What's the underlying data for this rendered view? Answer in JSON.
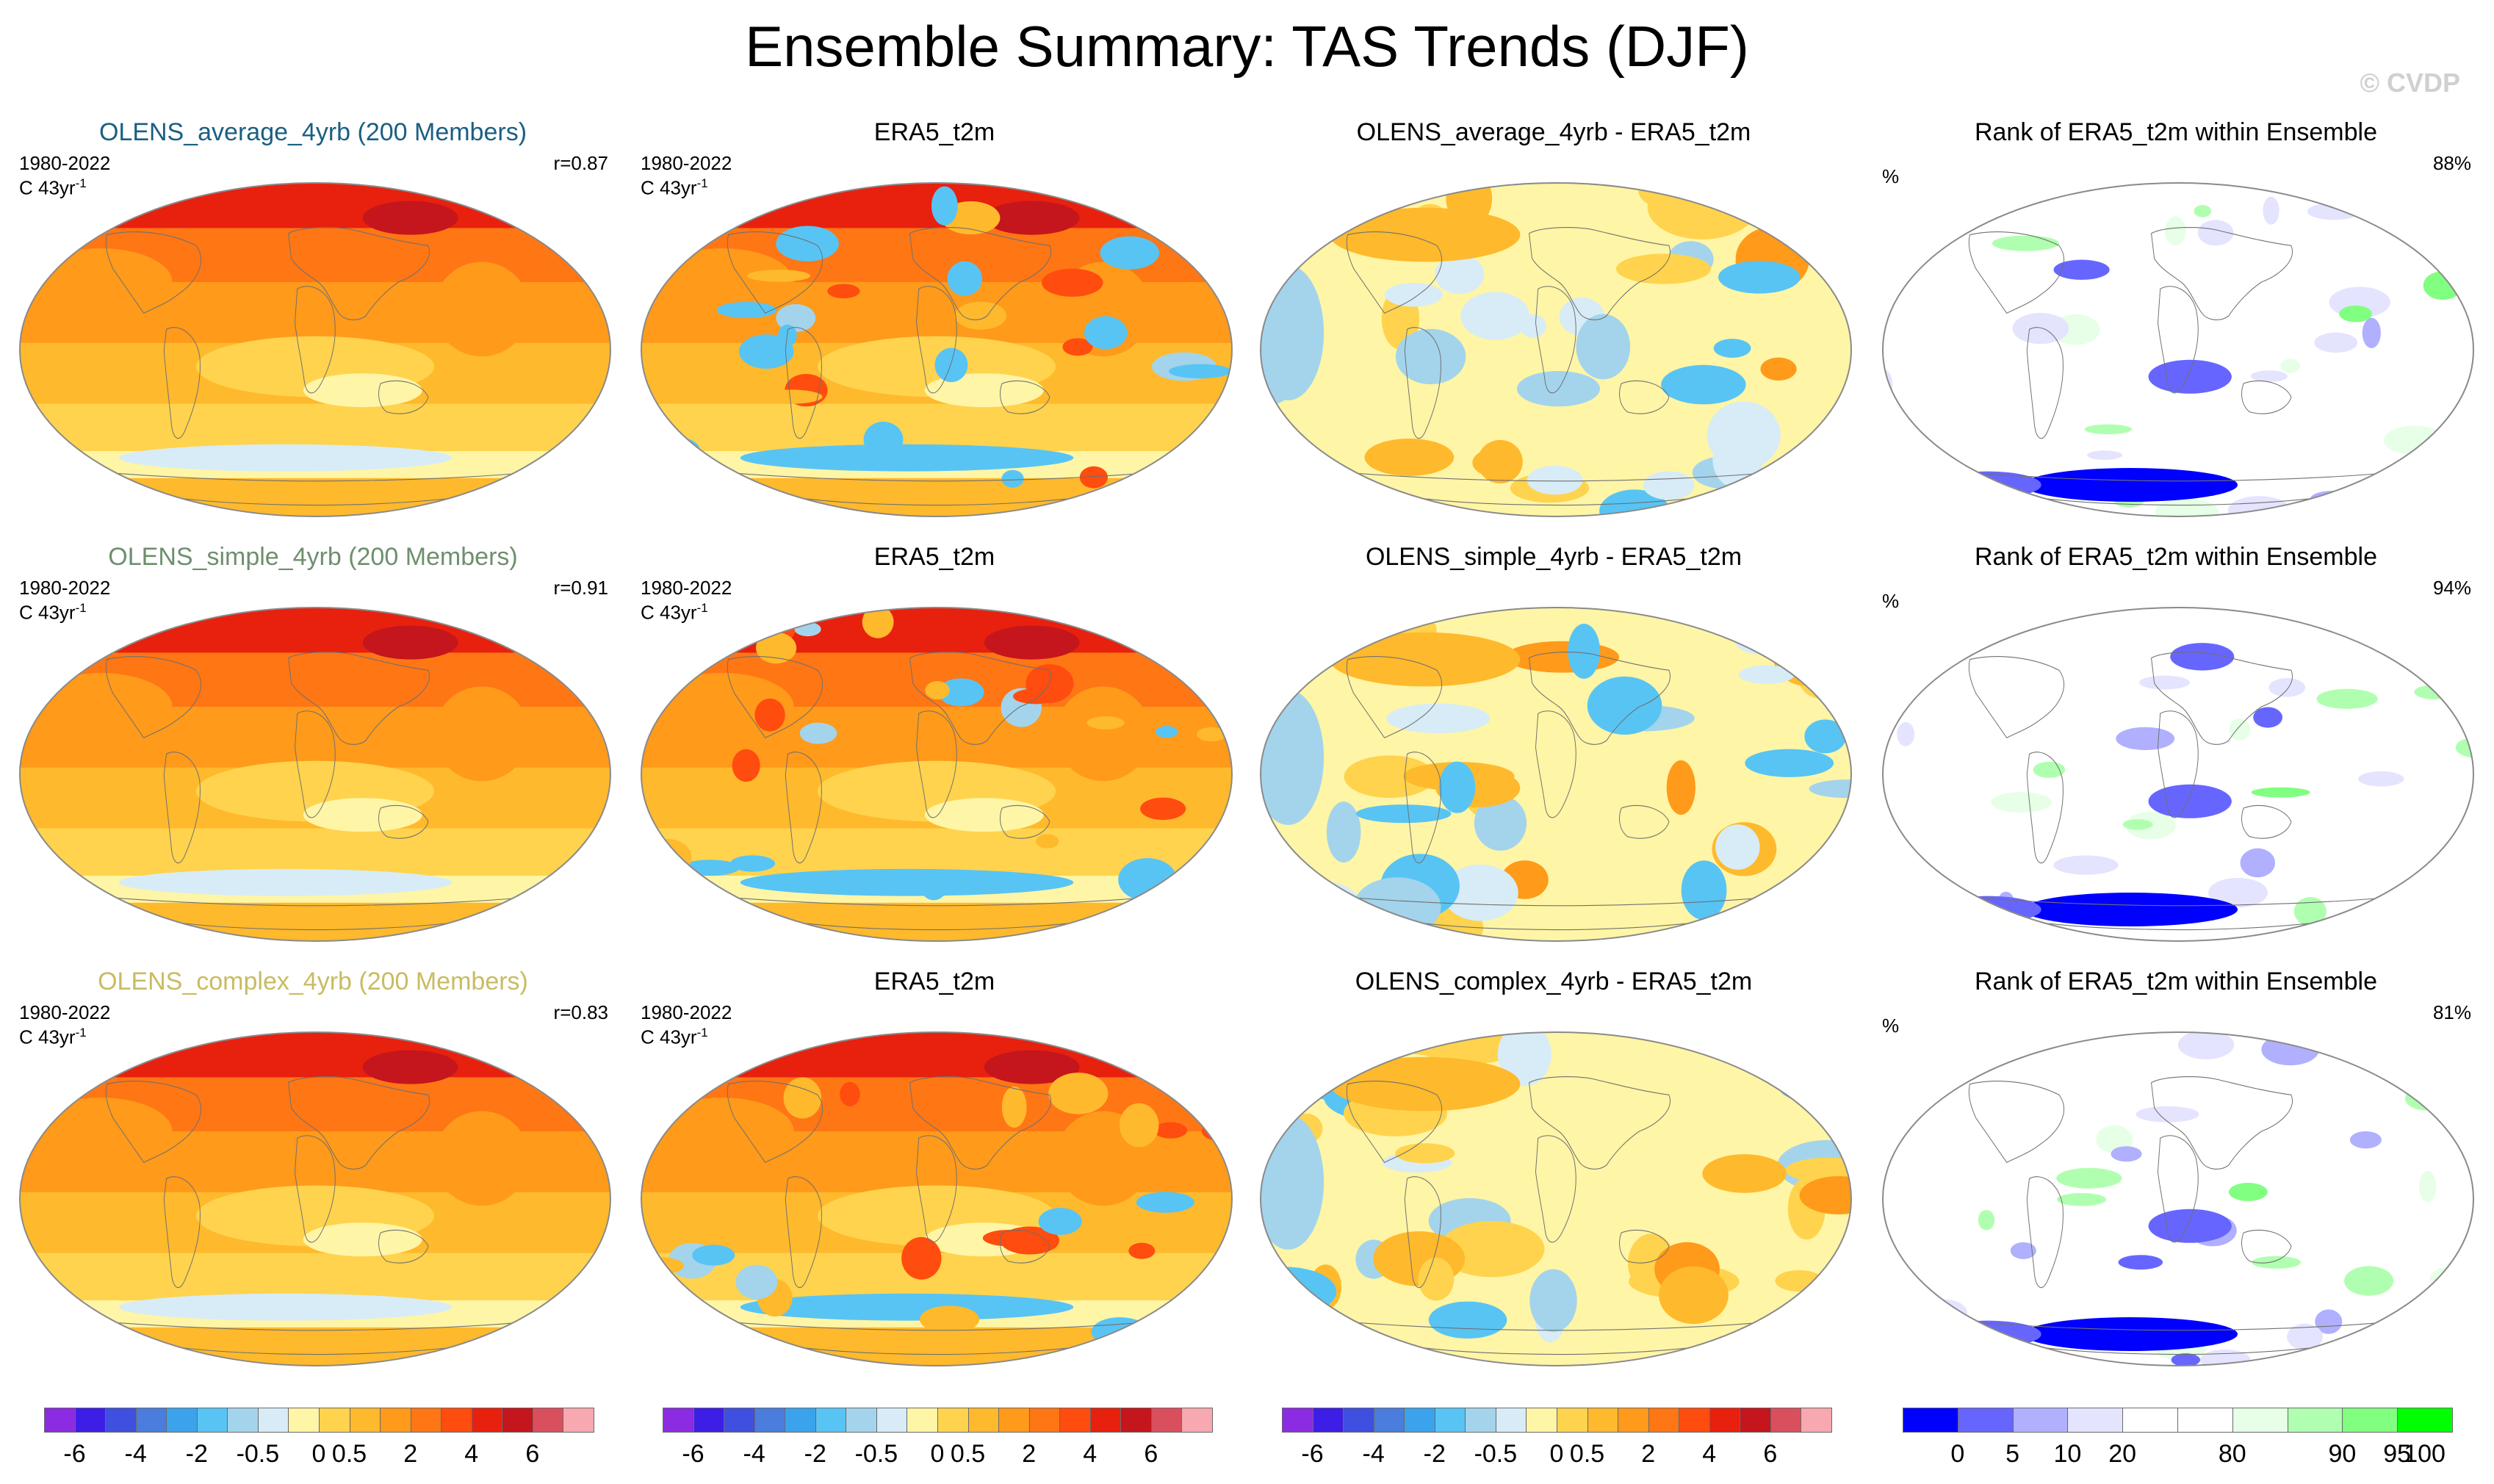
{
  "title": "Ensemble Summary: TAS Trends (DJF)",
  "watermark": "© CVDP",
  "chart_data": {
    "type": "heatmap",
    "description_note": "3x4 panel grid of global trend maps",
    "units": "C 43yr-1",
    "period": "1980-2022",
    "colors": {
      "trend": [
        "#8b2be2",
        "#3c1ee6",
        "#3f4fe0",
        "#4a7ddc",
        "#3aa3ec",
        "#58c4f4",
        "#a3d4ec",
        "#d7ecf6",
        "#fff5a6",
        "#ffd34d",
        "#ffb92c",
        "#ff9a1a",
        "#ff7615",
        "#ff4c0f",
        "#e8200e",
        "#c4161c",
        "#d94f5e",
        "#f7a8b0"
      ],
      "rank": [
        "#0000ff",
        "#6666ff",
        "#b0b0ff",
        "#e4e4ff",
        "#ffffff",
        "#ffffff",
        "#e6ffe6",
        "#b0ffb0",
        "#80ff80",
        "#00ff00"
      ],
      "title_average": "#1a5f82",
      "title_simple": "#6e8f6e",
      "title_complex": "#c9bb62"
    },
    "rows": [
      {
        "panels": [
          {
            "title": "OLENS_average_4yrb (200 Members)",
            "period": "1980-2022",
            "units_prefix": "C 43yr",
            "units_sup": "-1",
            "stat": "r=0.87",
            "kind": "model"
          },
          {
            "title": "ERA5_t2m",
            "period": "1980-2022",
            "units_prefix": "C 43yr",
            "units_sup": "-1",
            "stat": "",
            "kind": "obs"
          },
          {
            "title": "OLENS_average_4yrb - ERA5_t2m",
            "period": "",
            "units_prefix": "",
            "units_sup": "",
            "stat": "",
            "kind": "diff"
          },
          {
            "title": "Rank of ERA5_t2m within Ensemble",
            "period": "",
            "units_prefix": "%",
            "units_sup": "",
            "stat": "88%",
            "kind": "rank"
          }
        ]
      },
      {
        "panels": [
          {
            "title": "OLENS_simple_4yrb (200 Members)",
            "period": "1980-2022",
            "units_prefix": "C 43yr",
            "units_sup": "-1",
            "stat": "r=0.91",
            "kind": "model"
          },
          {
            "title": "ERA5_t2m",
            "period": "1980-2022",
            "units_prefix": "C 43yr",
            "units_sup": "-1",
            "stat": "",
            "kind": "obs"
          },
          {
            "title": "OLENS_simple_4yrb - ERA5_t2m",
            "period": "",
            "units_prefix": "",
            "units_sup": "",
            "stat": "",
            "kind": "diff"
          },
          {
            "title": "Rank of ERA5_t2m within Ensemble",
            "period": "",
            "units_prefix": "%",
            "units_sup": "",
            "stat": "94%",
            "kind": "rank"
          }
        ]
      },
      {
        "panels": [
          {
            "title": "OLENS_complex_4yrb (200 Members)",
            "period": "1980-2022",
            "units_prefix": "C 43yr",
            "units_sup": "-1",
            "stat": "r=0.83",
            "kind": "model"
          },
          {
            "title": "ERA5_t2m",
            "period": "1980-2022",
            "units_prefix": "C 43yr",
            "units_sup": "-1",
            "stat": "",
            "kind": "obs"
          },
          {
            "title": "OLENS_complex_4yrb - ERA5_t2m",
            "period": "",
            "units_prefix": "",
            "units_sup": "",
            "stat": "",
            "kind": "diff"
          },
          {
            "title": "Rank of ERA5_t2m within Ensemble",
            "period": "",
            "units_prefix": "%",
            "units_sup": "",
            "stat": "81%",
            "kind": "rank"
          }
        ]
      }
    ],
    "colorbars": [
      {
        "name": "trend",
        "labels": [
          "-6",
          "-4",
          "-2",
          "-0.5",
          "0",
          "0.5",
          "2",
          "4",
          "6"
        ]
      },
      {
        "name": "trend",
        "labels": [
          "-6",
          "-4",
          "-2",
          "-0.5",
          "0",
          "0.5",
          "2",
          "4",
          "6"
        ]
      },
      {
        "name": "trend",
        "labels": [
          "-6",
          "-4",
          "-2",
          "-0.5",
          "0",
          "0.5",
          "2",
          "4",
          "6"
        ]
      },
      {
        "name": "rank",
        "labels": [
          "0",
          "5",
          "10",
          "20",
          "80",
          "90",
          "95",
          "100"
        ]
      }
    ]
  }
}
